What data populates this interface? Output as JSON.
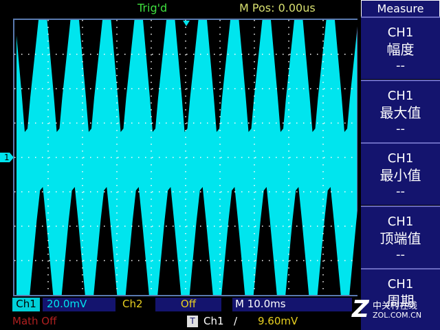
{
  "status_bar": {
    "trigger": "Trig'd",
    "m_pos": "M Pos: 0.00us"
  },
  "menu": {
    "title": "Measure",
    "items": [
      {
        "channel": "CH1",
        "label": "幅度",
        "value": "--"
      },
      {
        "channel": "CH1",
        "label": "最大值",
        "value": "--"
      },
      {
        "channel": "CH1",
        "label": "最小值",
        "value": "--"
      },
      {
        "channel": "CH1",
        "label": "顶端值",
        "value": "--"
      },
      {
        "channel": "CH1",
        "label": "周期"
      }
    ]
  },
  "channel_marker": "1",
  "bottom_bar": {
    "ch1_label": "Ch1",
    "ch1_scale": "20.0mV",
    "ch2_label": "Ch2",
    "ch2_state": "Off",
    "timebase": "M 10.0ms",
    "math": "Math Off",
    "trigger_icon": "T",
    "trigger_source": "Ch1",
    "trigger_slope": "/",
    "trigger_level": "9.60mV"
  },
  "watermark": {
    "name": "中关村在线",
    "url": "ZOL.COM.CN"
  }
}
